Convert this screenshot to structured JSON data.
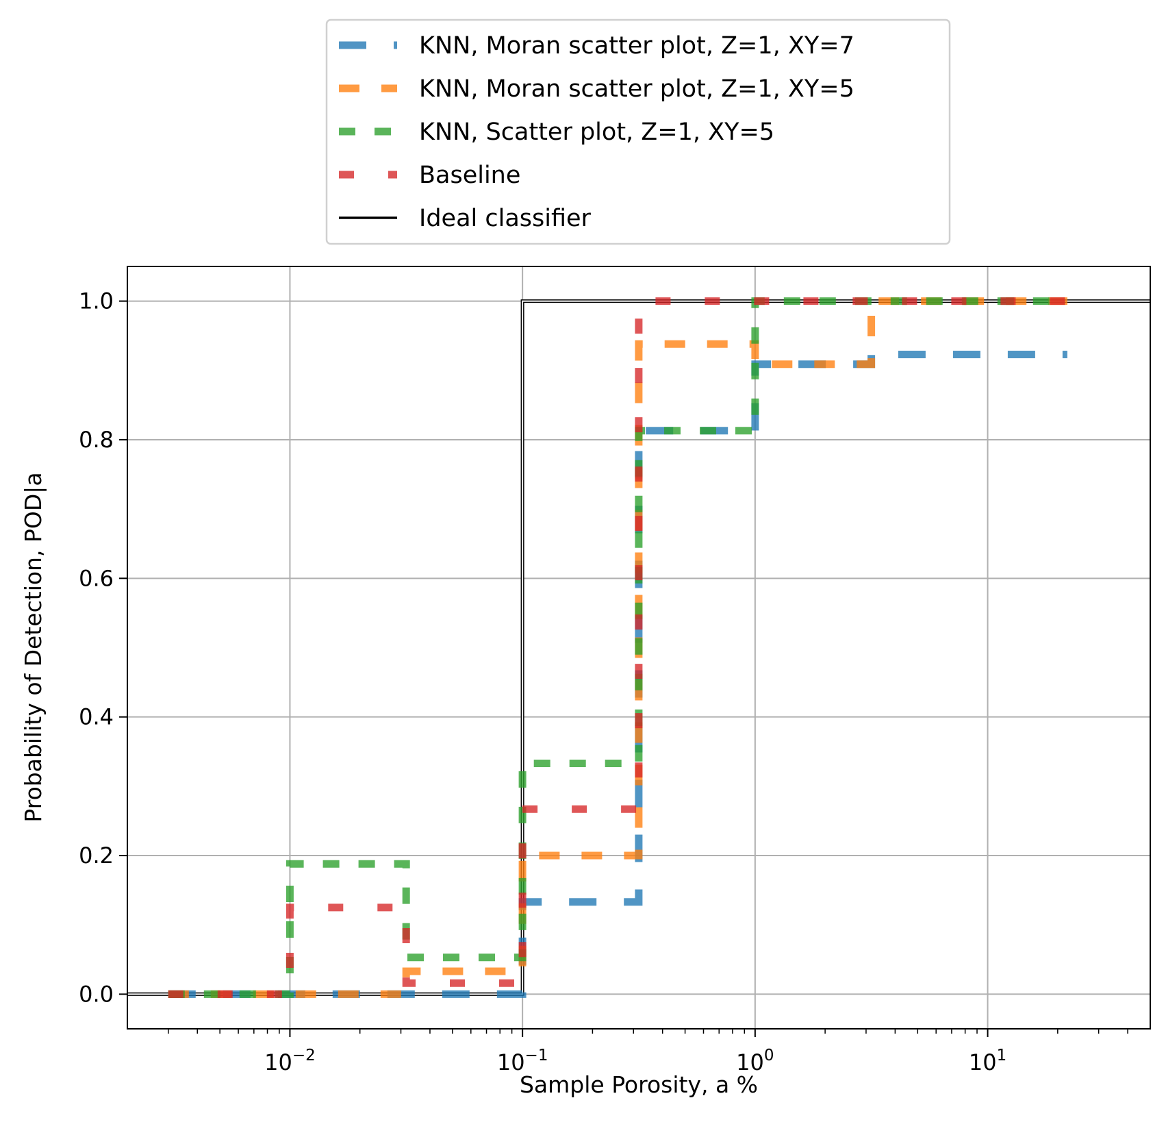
{
  "chart_data": {
    "type": "line",
    "step": "post",
    "xscale": "log",
    "xlim": [
      0.002,
      50
    ],
    "ylim": [
      -0.05,
      1.05
    ],
    "grid": true,
    "legend_placement": "above-plot",
    "xlabel": "Sample Porosity, a %",
    "ylabel": "Probability of Detection, POD|a",
    "x_ticks": [
      {
        "value": 0.01,
        "base": "10",
        "exp": "−2"
      },
      {
        "value": 0.1,
        "base": "10",
        "exp": "−1"
      },
      {
        "value": 1,
        "base": "10",
        "exp": "0"
      },
      {
        "value": 10,
        "base": "10",
        "exp": "1"
      }
    ],
    "y_ticks": [
      {
        "value": 0.0,
        "label": "0.0"
      },
      {
        "value": 0.2,
        "label": "0.2"
      },
      {
        "value": 0.4,
        "label": "0.4"
      },
      {
        "value": 0.6,
        "label": "0.6"
      },
      {
        "value": 0.8,
        "label": "0.8"
      },
      {
        "value": 1.0,
        "label": "1.0"
      }
    ],
    "series": [
      {
        "name": "KNN, Moran scatter plot, Z=1, XY=7",
        "color": "#1f77b4",
        "style": "longdash",
        "x": [
          0.003,
          0.1,
          0.316,
          1.0,
          3.16,
          22
        ],
        "y": [
          0.0,
          0.133,
          0.813,
          0.909,
          0.923,
          0.923
        ]
      },
      {
        "name": "KNN, Moran scatter plot, Z=1, XY=5",
        "color": "#ff7f0e",
        "style": "dash",
        "x": [
          0.003,
          0.0316,
          0.1,
          0.316,
          1.0,
          3.16,
          22
        ],
        "y": [
          0.0,
          0.033,
          0.2,
          0.938,
          0.909,
          1.0,
          1.0
        ]
      },
      {
        "name": "KNN, Scatter plot, Z=1, XY=5",
        "color": "#2ca02c",
        "style": "shortdash",
        "x": [
          0.003,
          0.01,
          0.0316,
          0.1,
          0.316,
          1.0,
          22
        ],
        "y": [
          0.0,
          0.188,
          0.053,
          0.333,
          0.813,
          1.0,
          1.0
        ]
      },
      {
        "name": "Baseline",
        "color": "#d62728",
        "style": "dot",
        "x": [
          0.003,
          0.01,
          0.0316,
          0.1,
          0.316,
          30
        ],
        "y": [
          0.0,
          0.125,
          0.016,
          0.267,
          1.0,
          1.0
        ]
      },
      {
        "name": "Ideal classifier",
        "color": "#000000",
        "style": "solid",
        "x": [
          0.002,
          0.1,
          50
        ],
        "y": [
          0.0,
          1.0,
          1.0
        ]
      }
    ]
  }
}
